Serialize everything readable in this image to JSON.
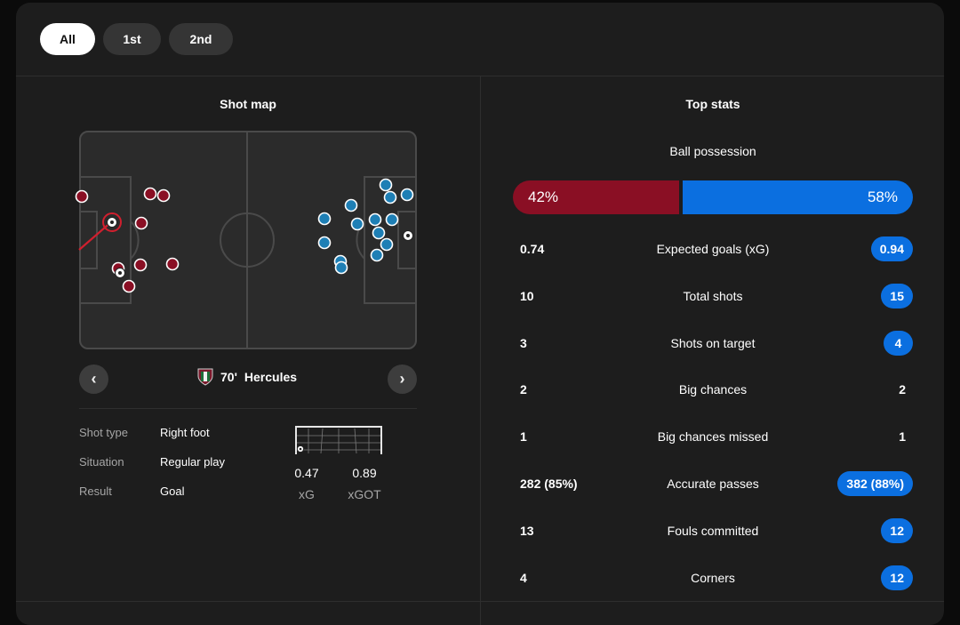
{
  "tabs": [
    {
      "label": "All",
      "active": true
    },
    {
      "label": "1st",
      "active": false
    },
    {
      "label": "2nd",
      "active": false
    }
  ],
  "shot_map": {
    "title": "Shot map",
    "selected_shot": {
      "minute": "70'",
      "player": "Hercules",
      "details": [
        {
          "key": "Shot type",
          "value": "Right foot"
        },
        {
          "key": "Situation",
          "value": "Regular play"
        },
        {
          "key": "Result",
          "value": "Goal"
        }
      ],
      "xg": "0.47",
      "xg_label": "xG",
      "xgot": "0.89",
      "xgot_label": "xGOT"
    },
    "prev_glyph": "‹",
    "next_glyph": "›"
  },
  "top_stats": {
    "title": "Top stats",
    "possession": {
      "label": "Ball possession",
      "home": "42%",
      "away": "58%",
      "home_fraction": 0.42
    },
    "rows": [
      {
        "home": "0.74",
        "label": "Expected goals (xG)",
        "away": "0.94",
        "away_highlight": true
      },
      {
        "home": "10",
        "label": "Total shots",
        "away": "15",
        "away_highlight": true
      },
      {
        "home": "3",
        "label": "Shots on target",
        "away": "4",
        "away_highlight": true
      },
      {
        "home": "2",
        "label": "Big chances",
        "away": "2",
        "away_highlight": false
      },
      {
        "home": "1",
        "label": "Big chances missed",
        "away": "1",
        "away_highlight": false
      },
      {
        "home": "282 (85%)",
        "label": "Accurate passes",
        "away": "382 (88%)",
        "away_highlight": true
      },
      {
        "home": "13",
        "label": "Fouls committed",
        "away": "12",
        "away_highlight": true
      },
      {
        "home": "4",
        "label": "Corners",
        "away": "12",
        "away_highlight": true
      }
    ]
  },
  "colors": {
    "home": "#8a0f24",
    "away": "#0b6fe0",
    "away_shot": "#1e7fb5"
  }
}
